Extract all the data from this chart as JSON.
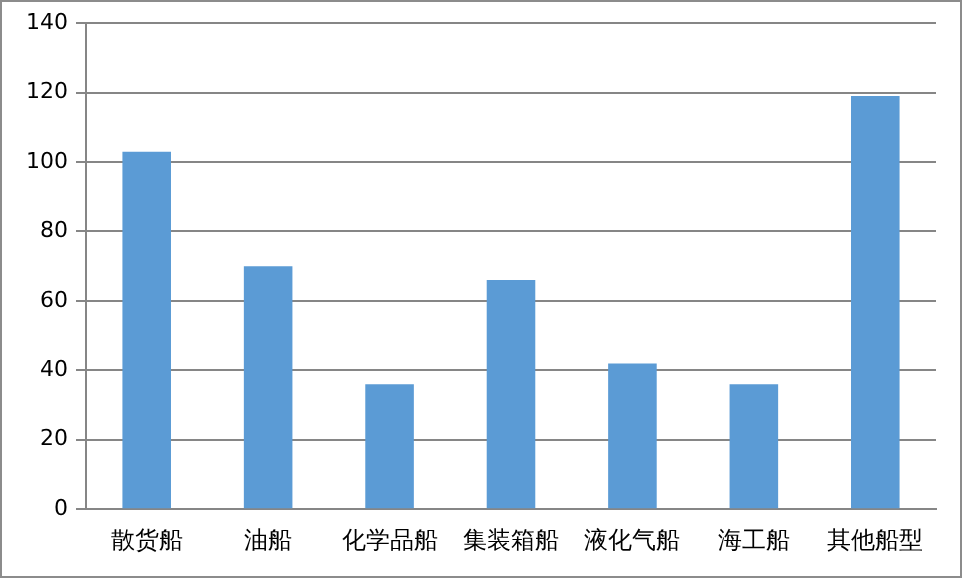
{
  "chart_data": {
    "type": "bar",
    "categories": [
      "散货船",
      "油船",
      "化学品船",
      "集装箱船",
      "液化气船",
      "海工船",
      "其他船型"
    ],
    "values": [
      103,
      70,
      36,
      66,
      42,
      36,
      119
    ],
    "color": "#5b9bd5",
    "ylim": [
      0,
      140
    ],
    "yticks": [
      0,
      20,
      40,
      60,
      80,
      100,
      120,
      140
    ],
    "grid": "y",
    "legend": false
  }
}
